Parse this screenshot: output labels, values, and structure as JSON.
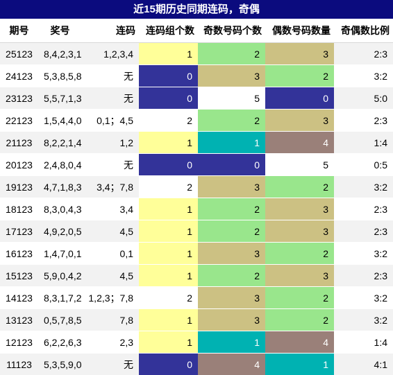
{
  "title": "近15期历史同期连码，奇偶",
  "table": {
    "header": [
      "期号",
      "奖号",
      "连码",
      "连码组个数",
      "奇数号码个数",
      "偶数号码数量",
      "奇偶数比例"
    ],
    "rows": [
      [
        "25123",
        "8,4,2,3,1",
        "1,2,3,4",
        1,
        2,
        3,
        "2:3"
      ],
      [
        "24123",
        "5,3,8,5,8",
        "无",
        0,
        3,
        2,
        "3:2"
      ],
      [
        "23123",
        "5,5,7,1,3",
        "无",
        0,
        5,
        0,
        "5:0"
      ],
      [
        "22123",
        "1,5,4,4,0",
        "0,1；4,5",
        2,
        2,
        3,
        "2:3"
      ],
      [
        "21123",
        "8,2,2,1,4",
        "1,2",
        1,
        1,
        4,
        "1:4"
      ],
      [
        "20123",
        "2,4,8,0,4",
        "无",
        0,
        0,
        5,
        "0:5"
      ],
      [
        "19123",
        "4,7,1,8,3",
        "3,4；7,8",
        2,
        3,
        2,
        "3:2"
      ],
      [
        "18123",
        "8,3,0,4,3",
        "3,4",
        1,
        2,
        3,
        "2:3"
      ],
      [
        "17123",
        "4,9,2,0,5",
        "4,5",
        1,
        2,
        3,
        "2:3"
      ],
      [
        "16123",
        "1,4,7,0,1",
        "0,1",
        1,
        3,
        2,
        "3:2"
      ],
      [
        "15123",
        "5,9,0,4,2",
        "4,5",
        1,
        2,
        3,
        "2:3"
      ],
      [
        "14123",
        "8,3,1,7,2",
        "1,2,3；7,8",
        2,
        3,
        2,
        "3:2"
      ],
      [
        "13123",
        "0,5,7,8,5",
        "7,8",
        1,
        3,
        2,
        "3:2"
      ],
      [
        "12123",
        "6,2,2,6,3",
        "2,3",
        1,
        1,
        4,
        "1:4"
      ],
      [
        "11123",
        "5,3,5,9,0",
        "无",
        0,
        4,
        1,
        "4:1"
      ]
    ]
  }
}
